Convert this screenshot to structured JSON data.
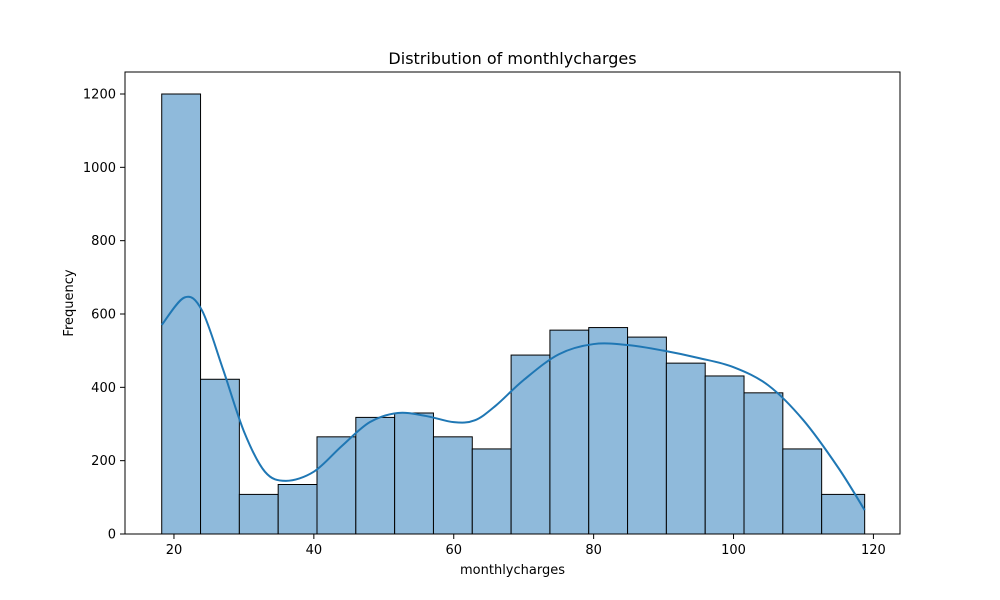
{
  "chart_data": {
    "type": "bar",
    "title": "Distribution of monthlycharges",
    "xlabel": "monthlycharges",
    "ylabel": "Frequency",
    "xlim": [
      13.0,
      123.8
    ],
    "ylim": [
      0,
      1260
    ],
    "xticks": [
      20,
      40,
      60,
      80,
      100,
      120
    ],
    "yticks": [
      0,
      200,
      400,
      600,
      800,
      1000,
      1200
    ],
    "bin_edges": [
      18.25,
      23.8,
      29.35,
      34.9,
      40.45,
      46.0,
      51.55,
      57.1,
      62.65,
      68.2,
      73.75,
      79.3,
      84.85,
      90.4,
      95.95,
      101.5,
      107.05,
      112.6,
      118.75
    ],
    "counts": [
      1200,
      422,
      108,
      135,
      265,
      318,
      330,
      265,
      232,
      488,
      556,
      563,
      537,
      466,
      431,
      385,
      232,
      108
    ],
    "kde": {
      "x": [
        18.25,
        21.5,
        24,
        27,
        30,
        33,
        36,
        40,
        44,
        48,
        52,
        56,
        60,
        63,
        66,
        70,
        75,
        80,
        85,
        90,
        95,
        100,
        105,
        110,
        115,
        118.75
      ],
      "y": [
        570,
        645,
        610,
        450,
        280,
        170,
        145,
        170,
        240,
        305,
        330,
        322,
        305,
        310,
        350,
        420,
        490,
        518,
        515,
        500,
        480,
        455,
        405,
        310,
        180,
        65
      ]
    },
    "bar_color": "#8fbadb",
    "edge_color": "#000000",
    "kde_color": "#1f77b4",
    "grid": false
  }
}
